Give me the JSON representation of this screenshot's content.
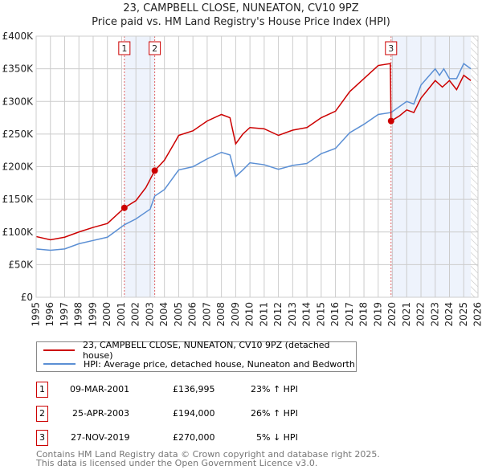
{
  "chart_data": {
    "type": "line",
    "title": "23, CAMPBELL CLOSE, NUNEATON, CV10 9PZ",
    "subtitle": "Price paid vs. HM Land Registry's House Price Index (HPI)",
    "xlim": [
      1995,
      2026
    ],
    "ylim": [
      0,
      400000
    ],
    "x_ticks": [
      "1995",
      "1996",
      "1997",
      "1998",
      "1999",
      "2000",
      "2001",
      "2002",
      "2003",
      "2004",
      "2005",
      "2006",
      "2007",
      "2008",
      "2009",
      "2010",
      "2011",
      "2012",
      "2013",
      "2014",
      "2015",
      "2016",
      "2017",
      "2018",
      "2019",
      "2020",
      "2021",
      "2022",
      "2023",
      "2024",
      "2025",
      "2026"
    ],
    "y_ticks": [
      {
        "v": 0,
        "l": "£0"
      },
      {
        "v": 50000,
        "l": "£50K"
      },
      {
        "v": 100000,
        "l": "£100K"
      },
      {
        "v": 150000,
        "l": "£150K"
      },
      {
        "v": 200000,
        "l": "£200K"
      },
      {
        "v": 250000,
        "l": "£250K"
      },
      {
        "v": 300000,
        "l": "£300K"
      },
      {
        "v": 350000,
        "l": "£350K"
      },
      {
        "v": 400000,
        "l": "£400K"
      }
    ],
    "grid": true,
    "series": [
      {
        "name": "23, CAMPBELL CLOSE, NUNEATON, CV10 9PZ (detached house)",
        "color": "#cc0000",
        "x": [
          1995,
          1996,
          1997,
          1998,
          1999,
          2000,
          2001.19,
          2002,
          2002.7,
          2003.32,
          2004,
          2004.8,
          2005,
          2006,
          2007,
          2008,
          2008.6,
          2009,
          2009.5,
          2010,
          2011,
          2012,
          2013,
          2014,
          2015,
          2016,
          2017,
          2018,
          2019,
          2019.85,
          2019.9,
          2020.5,
          2021,
          2021.5,
          2022,
          2023,
          2023.5,
          2024,
          2024.5,
          2025,
          2025.5
        ],
        "y": [
          93000,
          88000,
          92000,
          100000,
          107000,
          113000,
          136995,
          148000,
          168000,
          194000,
          210000,
          240000,
          248000,
          255000,
          270000,
          280000,
          275000,
          235000,
          250000,
          260000,
          258000,
          248000,
          256000,
          260000,
          275000,
          285000,
          315000,
          335000,
          355000,
          358000,
          270000,
          278000,
          287000,
          283000,
          305000,
          332000,
          322000,
          332000,
          318000,
          340000,
          332000
        ]
      },
      {
        "name": "HPI: Average price, detached house, Nuneaton and Bedworth",
        "color": "#5b8fd4",
        "x": [
          1995,
          1996,
          1997,
          1998,
          1999,
          2000,
          2001.19,
          2002,
          2003,
          2003.32,
          2004,
          2005,
          2006,
          2007,
          2008,
          2008.6,
          2009,
          2009.5,
          2010,
          2011,
          2012,
          2013,
          2014,
          2015,
          2016,
          2017,
          2018,
          2019,
          2019.9,
          2021,
          2021.5,
          2022,
          2023,
          2023.3,
          2023.6,
          2024,
          2024.5,
          2025,
          2025.5
        ],
        "y": [
          74000,
          72000,
          74000,
          82000,
          87000,
          92000,
          111000,
          120000,
          135000,
          155000,
          165000,
          195000,
          200000,
          212000,
          222000,
          218000,
          185000,
          195000,
          206000,
          203000,
          196000,
          202000,
          205000,
          220000,
          228000,
          252000,
          265000,
          280000,
          283000,
          300000,
          296000,
          325000,
          350000,
          340000,
          350000,
          335000,
          335000,
          358000,
          350000
        ]
      }
    ],
    "shaded": [
      [
        2001.19,
        2003.32
      ],
      [
        2019.9,
        2025.5
      ]
    ],
    "hatch_from": 2025.5,
    "sales": [
      {
        "n": "1",
        "x": 2001.19,
        "y": 136995,
        "date": "09-MAR-2001",
        "price": "£136,995",
        "hpi": "23% ↑ HPI"
      },
      {
        "n": "2",
        "x": 2003.32,
        "y": 194000,
        "date": "25-APR-2003",
        "price": "£194,000",
        "hpi": "26% ↑ HPI"
      },
      {
        "n": "3",
        "x": 2019.9,
        "y": 270000,
        "date": "27-NOV-2019",
        "price": "£270,000",
        "hpi": "5% ↓ HPI"
      }
    ],
    "legend_position": "below"
  },
  "footer": {
    "line1": "Contains HM Land Registry data © Crown copyright and database right 2025.",
    "line2": "This data is licensed under the Open Government Licence v3.0."
  }
}
